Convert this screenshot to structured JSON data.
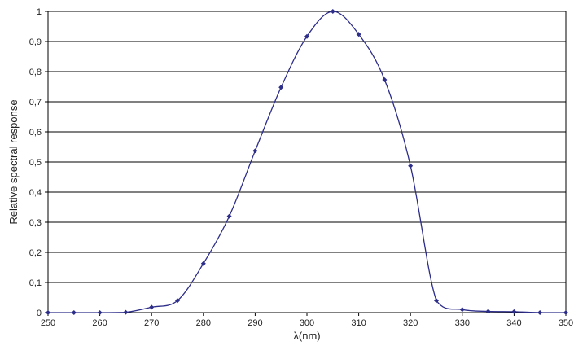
{
  "chart_data": {
    "type": "line",
    "title": "",
    "xlabel": "λ(nm)",
    "ylabel": "Relative spectral response",
    "xlim": [
      250,
      350
    ],
    "ylim": [
      0,
      1
    ],
    "x_ticks": [
      250,
      260,
      270,
      280,
      290,
      300,
      310,
      320,
      330,
      340,
      350
    ],
    "x_tick_labels": [
      "250",
      "260",
      "270",
      "280",
      "290",
      "300",
      "310",
      "320",
      "330",
      "340",
      "350"
    ],
    "y_ticks": [
      0,
      0.1,
      0.2,
      0.3,
      0.4,
      0.5,
      0.6,
      0.7,
      0.8,
      0.9,
      1
    ],
    "y_tick_labels": [
      "0",
      "0,1",
      "0,2",
      "0,3",
      "0,4",
      "0,5",
      "0,6",
      "0,7",
      "0,8",
      "0,9",
      "1"
    ],
    "grid": "horizontal",
    "line_color": "#2d2d8a",
    "marker": "diamond",
    "series": [
      {
        "x": [
          250,
          255,
          260,
          265,
          270,
          275,
          280,
          285,
          290,
          295,
          300,
          305,
          310,
          315,
          320,
          325,
          330,
          335,
          340,
          345,
          350
        ],
        "values": [
          0,
          0,
          0,
          0.001,
          0.018,
          0.04,
          0.163,
          0.32,
          0.537,
          0.748,
          0.917,
          1.0,
          0.924,
          0.773,
          0.487,
          0.04,
          0.01,
          0.004,
          0.003,
          0,
          0
        ]
      }
    ]
  }
}
